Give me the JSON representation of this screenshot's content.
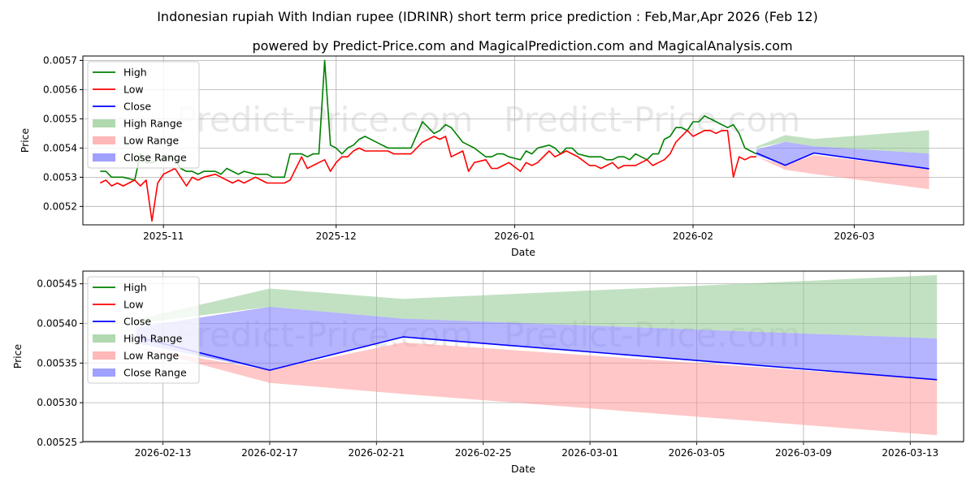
{
  "title": "Indonesian rupiah With Indian rupee (IDRINR) short term price prediction : Feb,Mar,Apr 2026 (Feb 12)",
  "subtitle": "powered by Predict-Price.com and MagicalPrediction.com and MagicalAnalysis.com",
  "watermark": "Predict-Price.com",
  "colors": {
    "high": "#008000",
    "low": "#ff0000",
    "close": "#0000ff",
    "high_range": "#8fc98f",
    "low_range": "#ff9999",
    "close_range": "#7777ff"
  },
  "chart_data": [
    {
      "type": "line",
      "name": "history-and-forecast",
      "xlabel": "Date",
      "ylabel": "Price",
      "x_range": [
        "2025-10-18",
        "2026-03-20"
      ],
      "ylim": [
        0.005137,
        0.005715
      ],
      "x_ticks": [
        {
          "date": "2025-11-01",
          "label": "2025-11"
        },
        {
          "date": "2025-12-01",
          "label": "2025-12"
        },
        {
          "date": "2026-01-01",
          "label": "2026-01"
        },
        {
          "date": "2026-02-01",
          "label": "2026-02"
        },
        {
          "date": "2026-03-01",
          "label": "2026-03"
        }
      ],
      "y_ticks": [
        {
          "value": 0.0052,
          "label": "0.0052"
        },
        {
          "value": 0.0053,
          "label": "0.0053"
        },
        {
          "value": 0.0054,
          "label": "0.0054"
        },
        {
          "value": 0.0055,
          "label": "0.0055"
        },
        {
          "value": 0.0056,
          "label": "0.0056"
        },
        {
          "value": 0.0057,
          "label": "0.0057"
        }
      ],
      "legend": [
        "High",
        "Low",
        "Close",
        "High Range",
        "Low Range",
        "Close Range"
      ],
      "legend_position": "upper-left",
      "grid": true,
      "high_series": [
        [
          "2025-10-21",
          0.00532
        ],
        [
          "2025-10-22",
          0.00532
        ],
        [
          "2025-10-23",
          0.0053
        ],
        [
          "2025-10-24",
          0.0053
        ],
        [
          "2025-10-25",
          0.0053
        ],
        [
          "2025-10-27",
          0.00529
        ],
        [
          "2025-10-28",
          0.00538
        ],
        [
          "2025-10-29",
          0.00535
        ],
        [
          "2025-10-30",
          0.00535
        ],
        [
          "2025-10-31",
          0.00536
        ],
        [
          "2025-11-01",
          0.00536
        ],
        [
          "2025-11-02",
          0.00537
        ],
        [
          "2025-11-03",
          0.00536
        ],
        [
          "2025-11-04",
          0.00533
        ],
        [
          "2025-11-05",
          0.00532
        ],
        [
          "2025-11-06",
          0.00532
        ],
        [
          "2025-11-07",
          0.00531
        ],
        [
          "2025-11-08",
          0.00532
        ],
        [
          "2025-11-10",
          0.00532
        ],
        [
          "2025-11-11",
          0.00531
        ],
        [
          "2025-11-12",
          0.00533
        ],
        [
          "2025-11-13",
          0.00532
        ],
        [
          "2025-11-14",
          0.00531
        ],
        [
          "2025-11-15",
          0.00532
        ],
        [
          "2025-11-17",
          0.00531
        ],
        [
          "2025-11-18",
          0.00531
        ],
        [
          "2025-11-19",
          0.00531
        ],
        [
          "2025-11-20",
          0.0053
        ],
        [
          "2025-11-22",
          0.0053
        ],
        [
          "2025-11-23",
          0.00538
        ],
        [
          "2025-11-25",
          0.00538
        ],
        [
          "2025-11-26",
          0.00537
        ],
        [
          "2025-11-27",
          0.00538
        ],
        [
          "2025-11-28",
          0.00538
        ],
        [
          "2025-11-29",
          0.0057
        ],
        [
          "2025-11-30",
          0.00541
        ],
        [
          "2025-12-01",
          0.0054
        ],
        [
          "2025-12-02",
          0.00538
        ],
        [
          "2025-12-03",
          0.0054
        ],
        [
          "2025-12-04",
          0.00541
        ],
        [
          "2025-12-05",
          0.00543
        ],
        [
          "2025-12-06",
          0.00544
        ],
        [
          "2025-12-07",
          0.00543
        ],
        [
          "2025-12-08",
          0.00542
        ],
        [
          "2025-12-10",
          0.0054
        ],
        [
          "2025-12-11",
          0.0054
        ],
        [
          "2025-12-12",
          0.0054
        ],
        [
          "2025-12-13",
          0.0054
        ],
        [
          "2025-12-14",
          0.0054
        ],
        [
          "2025-12-16",
          0.00549
        ],
        [
          "2025-12-17",
          0.00547
        ],
        [
          "2025-12-18",
          0.00545
        ],
        [
          "2025-12-19",
          0.00546
        ],
        [
          "2025-12-20",
          0.00548
        ],
        [
          "2025-12-21",
          0.00547
        ],
        [
          "2025-12-23",
          0.00542
        ],
        [
          "2025-12-24",
          0.00541
        ],
        [
          "2025-12-25",
          0.0054
        ],
        [
          "2025-12-27",
          0.00537
        ],
        [
          "2025-12-28",
          0.00537
        ],
        [
          "2025-12-29",
          0.00538
        ],
        [
          "2025-12-30",
          0.00538
        ],
        [
          "2025-12-31",
          0.00537
        ],
        [
          "2026-01-02",
          0.00536
        ],
        [
          "2026-01-03",
          0.00539
        ],
        [
          "2026-01-04",
          0.00538
        ],
        [
          "2026-01-05",
          0.0054
        ],
        [
          "2026-01-07",
          0.00541
        ],
        [
          "2026-01-08",
          0.0054
        ],
        [
          "2026-01-09",
          0.00538
        ],
        [
          "2026-01-10",
          0.0054
        ],
        [
          "2026-01-11",
          0.0054
        ],
        [
          "2026-01-12",
          0.00538
        ],
        [
          "2026-01-14",
          0.00537
        ],
        [
          "2026-01-15",
          0.00537
        ],
        [
          "2026-01-16",
          0.00537
        ],
        [
          "2026-01-17",
          0.00536
        ],
        [
          "2026-01-18",
          0.00536
        ],
        [
          "2026-01-19",
          0.00537
        ],
        [
          "2026-01-20",
          0.00537
        ],
        [
          "2026-01-21",
          0.00536
        ],
        [
          "2026-01-22",
          0.00538
        ],
        [
          "2026-01-23",
          0.00537
        ],
        [
          "2026-01-24",
          0.00536
        ],
        [
          "2026-01-25",
          0.00538
        ],
        [
          "2026-01-26",
          0.00538
        ],
        [
          "2026-01-27",
          0.00543
        ],
        [
          "2026-01-28",
          0.00544
        ],
        [
          "2026-01-29",
          0.00547
        ],
        [
          "2026-01-30",
          0.00547
        ],
        [
          "2026-01-31",
          0.00546
        ],
        [
          "2026-02-01",
          0.00549
        ],
        [
          "2026-02-02",
          0.00549
        ],
        [
          "2026-02-03",
          0.00551
        ],
        [
          "2026-02-04",
          0.0055
        ],
        [
          "2026-02-05",
          0.00549
        ],
        [
          "2026-02-06",
          0.00548
        ],
        [
          "2026-02-07",
          0.00547
        ],
        [
          "2026-02-08",
          0.00548
        ],
        [
          "2026-02-09",
          0.00545
        ],
        [
          "2026-02-10",
          0.0054
        ],
        [
          "2026-02-11",
          0.00539
        ],
        [
          "2026-02-12",
          0.00538
        ]
      ],
      "low_series": [
        [
          "2025-10-21",
          0.00528
        ],
        [
          "2025-10-22",
          0.00529
        ],
        [
          "2025-10-23",
          0.00527
        ],
        [
          "2025-10-24",
          0.00528
        ],
        [
          "2025-10-25",
          0.00527
        ],
        [
          "2025-10-27",
          0.00529
        ],
        [
          "2025-10-28",
          0.00527
        ],
        [
          "2025-10-29",
          0.00529
        ],
        [
          "2025-10-30",
          0.00515
        ],
        [
          "2025-10-31",
          0.00528
        ],
        [
          "2025-11-01",
          0.00531
        ],
        [
          "2025-11-02",
          0.00532
        ],
        [
          "2025-11-03",
          0.00533
        ],
        [
          "2025-11-04",
          0.0053
        ],
        [
          "2025-11-05",
          0.00527
        ],
        [
          "2025-11-06",
          0.0053
        ],
        [
          "2025-11-07",
          0.00529
        ],
        [
          "2025-11-08",
          0.0053
        ],
        [
          "2025-11-10",
          0.00531
        ],
        [
          "2025-11-11",
          0.0053
        ],
        [
          "2025-11-12",
          0.00529
        ],
        [
          "2025-11-13",
          0.00528
        ],
        [
          "2025-11-14",
          0.00529
        ],
        [
          "2025-11-15",
          0.00528
        ],
        [
          "2025-11-17",
          0.0053
        ],
        [
          "2025-11-18",
          0.00529
        ],
        [
          "2025-11-19",
          0.00528
        ],
        [
          "2025-11-20",
          0.00528
        ],
        [
          "2025-11-22",
          0.00528
        ],
        [
          "2025-11-23",
          0.00529
        ],
        [
          "2025-11-25",
          0.00537
        ],
        [
          "2025-11-26",
          0.00533
        ],
        [
          "2025-11-27",
          0.00534
        ],
        [
          "2025-11-28",
          0.00535
        ],
        [
          "2025-11-29",
          0.00536
        ],
        [
          "2025-11-30",
          0.00532
        ],
        [
          "2025-12-01",
          0.00535
        ],
        [
          "2025-12-02",
          0.00537
        ],
        [
          "2025-12-03",
          0.00537
        ],
        [
          "2025-12-04",
          0.00539
        ],
        [
          "2025-12-05",
          0.0054
        ],
        [
          "2025-12-06",
          0.00539
        ],
        [
          "2025-12-07",
          0.00539
        ],
        [
          "2025-12-08",
          0.00539
        ],
        [
          "2025-12-10",
          0.00539
        ],
        [
          "2025-12-11",
          0.00538
        ],
        [
          "2025-12-12",
          0.00538
        ],
        [
          "2025-12-13",
          0.00538
        ],
        [
          "2025-12-14",
          0.00538
        ],
        [
          "2025-12-16",
          0.00542
        ],
        [
          "2025-12-17",
          0.00543
        ],
        [
          "2025-12-18",
          0.00544
        ],
        [
          "2025-12-19",
          0.00543
        ],
        [
          "2025-12-20",
          0.00544
        ],
        [
          "2025-12-21",
          0.00537
        ],
        [
          "2025-12-23",
          0.00539
        ],
        [
          "2025-12-24",
          0.00532
        ],
        [
          "2025-12-25",
          0.00535
        ],
        [
          "2025-12-27",
          0.00536
        ],
        [
          "2025-12-28",
          0.00533
        ],
        [
          "2025-12-29",
          0.00533
        ],
        [
          "2025-12-30",
          0.00534
        ],
        [
          "2025-12-31",
          0.00535
        ],
        [
          "2026-01-02",
          0.00532
        ],
        [
          "2026-01-03",
          0.00535
        ],
        [
          "2026-01-04",
          0.00534
        ],
        [
          "2026-01-05",
          0.00535
        ],
        [
          "2026-01-07",
          0.00539
        ],
        [
          "2026-01-08",
          0.00537
        ],
        [
          "2026-01-09",
          0.00538
        ],
        [
          "2026-01-10",
          0.00539
        ],
        [
          "2026-01-11",
          0.00538
        ],
        [
          "2026-01-12",
          0.00537
        ],
        [
          "2026-01-14",
          0.00534
        ],
        [
          "2026-01-15",
          0.00534
        ],
        [
          "2026-01-16",
          0.00533
        ],
        [
          "2026-01-17",
          0.00534
        ],
        [
          "2026-01-18",
          0.00535
        ],
        [
          "2026-01-19",
          0.00533
        ],
        [
          "2026-01-20",
          0.00534
        ],
        [
          "2026-01-21",
          0.00534
        ],
        [
          "2026-01-22",
          0.00534
        ],
        [
          "2026-01-23",
          0.00535
        ],
        [
          "2026-01-24",
          0.00536
        ],
        [
          "2026-01-25",
          0.00534
        ],
        [
          "2026-01-26",
          0.00535
        ],
        [
          "2026-01-27",
          0.00536
        ],
        [
          "2026-01-28",
          0.00538
        ],
        [
          "2026-01-29",
          0.00542
        ],
        [
          "2026-01-30",
          0.00544
        ],
        [
          "2026-01-31",
          0.00546
        ],
        [
          "2026-02-01",
          0.00544
        ],
        [
          "2026-02-02",
          0.00545
        ],
        [
          "2026-02-03",
          0.00546
        ],
        [
          "2026-02-04",
          0.00546
        ],
        [
          "2026-02-05",
          0.00545
        ],
        [
          "2026-02-06",
          0.00546
        ],
        [
          "2026-02-07",
          0.00546
        ],
        [
          "2026-02-08",
          0.0053
        ],
        [
          "2026-02-09",
          0.00537
        ],
        [
          "2026-02-10",
          0.00536
        ],
        [
          "2026-02-11",
          0.00537
        ],
        [
          "2026-02-12",
          0.00537
        ]
      ],
      "forecast_dates": [
        "2026-02-12",
        "2026-02-17",
        "2026-02-22",
        "2026-03-14"
      ],
      "forecast_close": [
        0.005383,
        0.005341,
        0.005383,
        0.005329
      ],
      "high_range_upper": [
        0.005405,
        0.005444,
        0.005431,
        0.005461
      ],
      "high_range_lower": [
        0.0054,
        0.005421,
        0.005406,
        0.005381
      ],
      "low_range_upper": [
        0.00537,
        0.005341,
        0.005376,
        0.005329
      ],
      "low_range_lower": [
        0.00537,
        0.005325,
        0.005311,
        0.005259
      ],
      "close_range_upper": [
        0.005395,
        0.005421,
        0.005406,
        0.005381
      ],
      "close_range_lower": [
        0.005375,
        0.005341,
        0.005383,
        0.005329
      ]
    },
    {
      "type": "area",
      "name": "forecast-detail",
      "xlabel": "Date",
      "ylabel": "Price",
      "x_range": [
        "2026-02-10",
        "2026-03-15"
      ],
      "ylim": [
        0.005251,
        0.005466
      ],
      "x_ticks": [
        {
          "date": "2026-02-13",
          "label": "2026-02-13"
        },
        {
          "date": "2026-02-17",
          "label": "2026-02-17"
        },
        {
          "date": "2026-02-21",
          "label": "2026-02-21"
        },
        {
          "date": "2026-02-25",
          "label": "2026-02-25"
        },
        {
          "date": "2026-03-01",
          "label": "2026-03-01"
        },
        {
          "date": "2026-03-05",
          "label": "2026-03-05"
        },
        {
          "date": "2026-03-09",
          "label": "2026-03-09"
        },
        {
          "date": "2026-03-13",
          "label": "2026-03-13"
        }
      ],
      "y_ticks": [
        {
          "value": 0.00525,
          "label": "0.00525"
        },
        {
          "value": 0.0053,
          "label": "0.00530"
        },
        {
          "value": 0.00535,
          "label": "0.00535"
        },
        {
          "value": 0.0054,
          "label": "0.00540"
        },
        {
          "value": 0.00545,
          "label": "0.00545"
        }
      ],
      "legend": [
        "High",
        "Low",
        "Close",
        "High Range",
        "Low Range",
        "Close Range"
      ],
      "legend_position": "upper-left",
      "grid": true,
      "forecast_dates": [
        "2026-02-12",
        "2026-02-17",
        "2026-02-22",
        "2026-03-14"
      ],
      "forecast_close": [
        0.005383,
        0.005341,
        0.005383,
        0.005329
      ],
      "high_range_upper": [
        0.005405,
        0.005444,
        0.005431,
        0.005461
      ],
      "high_range_lower": [
        0.0054,
        0.005421,
        0.005406,
        0.005381
      ],
      "low_range_upper": [
        0.00537,
        0.005341,
        0.005376,
        0.005329
      ],
      "low_range_lower": [
        0.00537,
        0.005325,
        0.005311,
        0.005259
      ],
      "close_range_upper": [
        0.005395,
        0.005421,
        0.005406,
        0.005381
      ],
      "close_range_lower": [
        0.005375,
        0.005341,
        0.005383,
        0.005329
      ]
    }
  ]
}
